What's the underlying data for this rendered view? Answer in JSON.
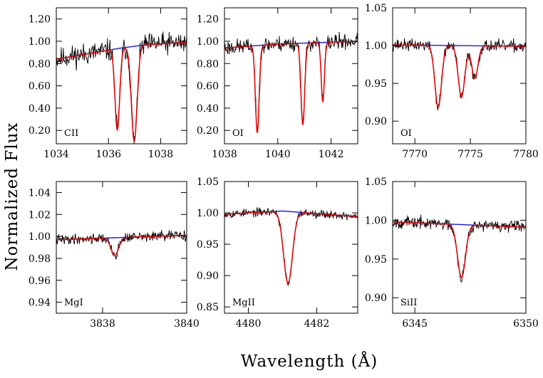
{
  "figure": {
    "xlabel": "Wavelength (Å)",
    "ylabel": "Normalized Flux"
  },
  "colors": {
    "observed": "#000000",
    "fit": "#e00000",
    "continuum": "#1a1ae0"
  },
  "chart_data": [
    {
      "type": "line",
      "label": "CII",
      "xlim": [
        1034,
        1039
      ],
      "ylim": [
        0.08,
        1.3
      ],
      "xticks": [
        1034,
        1036,
        1038
      ],
      "yticks": [
        0.2,
        0.4,
        0.6,
        0.8,
        1.0,
        1.2
      ],
      "tick_decimals": 2,
      "continuum": [
        [
          1034,
          0.84
        ],
        [
          1036.5,
          0.94
        ],
        [
          1037.5,
          0.97
        ],
        [
          1039,
          0.99
        ]
      ],
      "lines": [
        {
          "c": 1036.34,
          "d": 0.73,
          "w": 0.09
        },
        {
          "c": 1036.99,
          "d": 0.85,
          "w": 0.11
        }
      ],
      "noise": 0.075,
      "seed": 11
    },
    {
      "type": "line",
      "label": "OI",
      "xlim": [
        1038,
        1043
      ],
      "ylim": [
        0.08,
        1.3
      ],
      "xticks": [
        1038,
        1040,
        1042
      ],
      "yticks": [
        0.2,
        0.4,
        0.6,
        0.8,
        1.0,
        1.2
      ],
      "tick_decimals": 2,
      "continuum": [
        [
          1038,
          0.94
        ],
        [
          1040,
          0.975
        ],
        [
          1043,
          1.0
        ]
      ],
      "lines": [
        {
          "c": 1039.23,
          "d": 0.78,
          "w": 0.07
        },
        {
          "c": 1040.94,
          "d": 0.73,
          "w": 0.07
        },
        {
          "c": 1041.69,
          "d": 0.53,
          "w": 0.06
        }
      ],
      "noise": 0.055,
      "seed": 23
    },
    {
      "type": "line",
      "label": "OI",
      "xlim": [
        7768,
        7780
      ],
      "ylim": [
        0.87,
        1.05
      ],
      "xticks": [
        7770,
        7775,
        7780
      ],
      "yticks": [
        0.9,
        0.95,
        1.0,
        1.05
      ],
      "tick_decimals": 2,
      "continuum": [
        [
          7768,
          1.001
        ],
        [
          7780,
          0.999
        ]
      ],
      "lines": [
        {
          "c": 7772.1,
          "d": 0.082,
          "w": 0.3
        },
        {
          "c": 7774.2,
          "d": 0.068,
          "w": 0.3
        },
        {
          "c": 7775.4,
          "d": 0.043,
          "w": 0.28
        }
      ],
      "noise": 0.006,
      "seed": 37
    },
    {
      "type": "line",
      "label": "MgI",
      "xlim": [
        3836.9,
        3840
      ],
      "ylim": [
        0.93,
        1.05
      ],
      "xticks": [
        3838,
        3840
      ],
      "yticks": [
        0.94,
        0.96,
        0.98,
        1.0,
        1.02,
        1.04
      ],
      "tick_decimals": 2,
      "continuum": [
        [
          3836.9,
          0.997
        ],
        [
          3840,
          1.001
        ]
      ],
      "lines": [
        {
          "c": 3838.29,
          "d": 0.016,
          "w": 0.09
        }
      ],
      "noise": 0.0035,
      "seed": 41
    },
    {
      "type": "line",
      "label": "MgII",
      "xlim": [
        4479.3,
        4483.2
      ],
      "ylim": [
        0.84,
        1.05
      ],
      "xticks": [
        4480,
        4482
      ],
      "yticks": [
        0.85,
        0.9,
        0.95,
        1.0,
        1.05
      ],
      "tick_decimals": 2,
      "continuum": [
        [
          4479.3,
          0.998
        ],
        [
          4481,
          1.003
        ],
        [
          4483.2,
          0.994
        ]
      ],
      "lines": [
        {
          "c": 4481.16,
          "d": 0.115,
          "w": 0.13
        }
      ],
      "noise": 0.005,
      "seed": 53
    },
    {
      "type": "line",
      "label": "SiII",
      "xlim": [
        6344,
        6350
      ],
      "ylim": [
        0.88,
        1.05
      ],
      "xticks": [
        6345,
        6350
      ],
      "yticks": [
        0.9,
        0.95,
        1.0,
        1.05
      ],
      "tick_decimals": 2,
      "continuum": [
        [
          6344,
          0.998
        ],
        [
          6350,
          0.991
        ]
      ],
      "lines": [
        {
          "c": 6347.1,
          "d": 0.068,
          "w": 0.18
        }
      ],
      "noise": 0.006,
      "seed": 67
    }
  ]
}
